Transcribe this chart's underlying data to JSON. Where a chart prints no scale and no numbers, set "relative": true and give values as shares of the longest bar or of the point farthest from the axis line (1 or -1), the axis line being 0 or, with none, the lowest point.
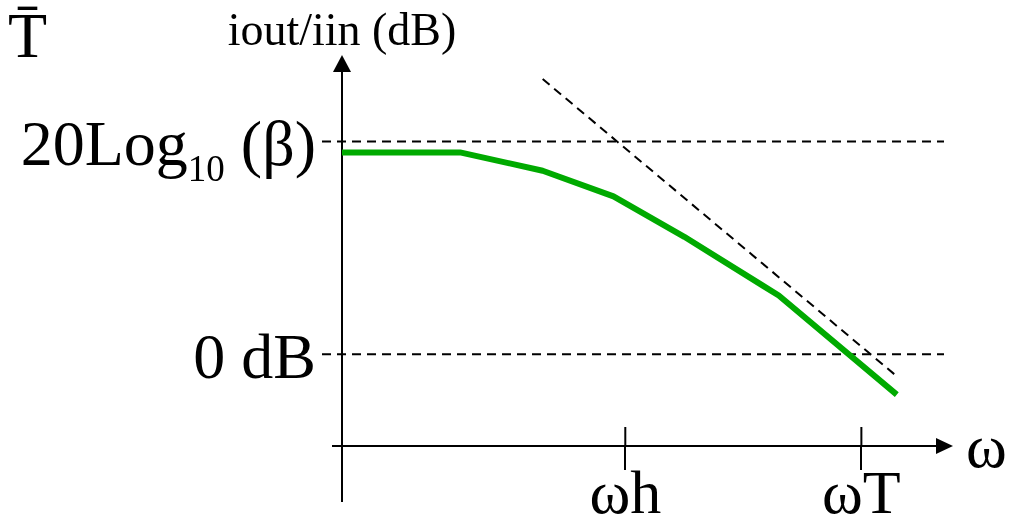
{
  "chart_data": {
    "type": "line",
    "relative": true,
    "xlabel": "ω",
    "ylabel": "iout/iin (dB)",
    "annotations": [
      "T̄"
    ],
    "categories": [
      null,
      null,
      null,
      null,
      null,
      null,
      null,
      null,
      null,
      null,
      null,
      null,
      null,
      null,
      null,
      null,
      null,
      null,
      null,
      null,
      null,
      null,
      null,
      null,
      "ωh",
      null,
      null,
      null,
      null,
      null,
      null,
      null,
      null,
      null,
      null,
      null,
      null,
      null,
      null,
      null,
      null,
      null,
      null,
      null,
      "ωT",
      null,
      null,
      null,
      null,
      null,
      null,
      null
    ],
    "series": [
      {
        "color": "#00aa00",
        "values": [
          0.8,
          null,
          null,
          null,
          0.8,
          null,
          null,
          null,
          null,
          null,
          0.8,
          null,
          null,
          null,
          null,
          null,
          null,
          0.75,
          null,
          null,
          null,
          null,
          null,
          0.68,
          null,
          null,
          null,
          null,
          null,
          0.57,
          null,
          null,
          null,
          null,
          null,
          null,
          null,
          0.41,
          null,
          null,
          null,
          null,
          null,
          null,
          null,
          null,
          null,
          0.14,
          null,
          null,
          null,
          null
        ]
      },
      {
        "color": "#000000",
        "line_style": "dashed",
        "values": [
          null,
          null,
          null,
          null,
          null,
          null,
          null,
          null,
          null,
          null,
          null,
          null,
          null,
          null,
          null,
          null,
          null,
          1,
          null,
          null,
          null,
          null,
          null,
          null,
          null,
          null,
          null,
          null,
          null,
          null,
          null,
          null,
          null,
          null,
          null,
          null,
          null,
          null,
          null,
          null,
          null,
          null,
          null,
          null,
          null,
          null,
          null,
          0.19,
          null,
          null,
          null,
          null
        ]
      }
    ],
    "ref_lines": [
      {
        "axis": "y",
        "value": 0.83,
        "label": "20Log$_{10}$ (β)",
        "color": "#000000",
        "line_style": "dashed"
      },
      {
        "axis": "y",
        "value": 0.25,
        "label": "0 dB",
        "color": "#000000",
        "line_style": "dashed"
      }
    ]
  }
}
